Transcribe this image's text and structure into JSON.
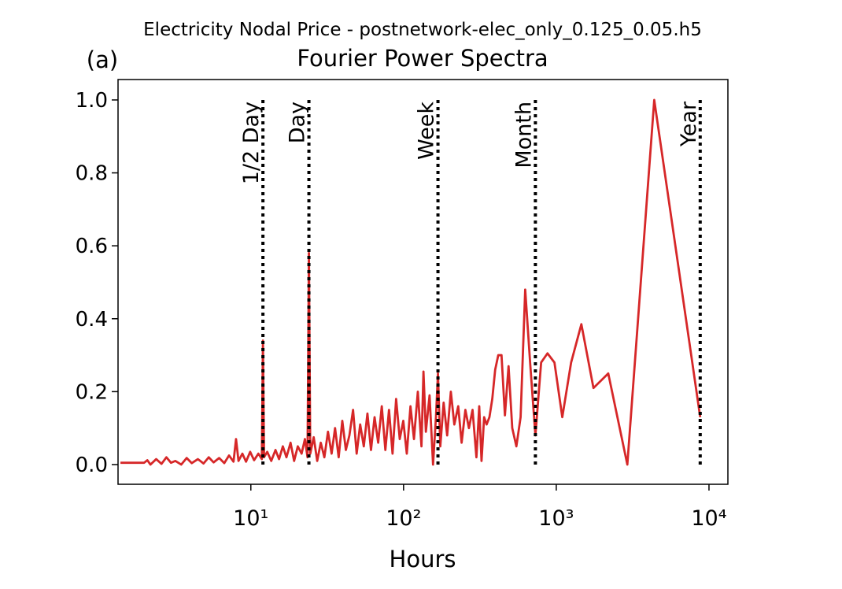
{
  "chart_data": {
    "type": "line",
    "suptitle": "Electricity Nodal Price - postnetwork-elec_only_0.125_0.05.h5",
    "panel_label": "(a)",
    "title": "Fourier Power Spectra",
    "xlabel": "Hours",
    "xscale": "log",
    "xlim": [
      1.35,
      13300
    ],
    "ylim": [
      -0.054,
      1.056
    ],
    "xticks": [
      {
        "value": 10,
        "label": "10¹"
      },
      {
        "value": 100,
        "label": "10²"
      },
      {
        "value": 1000,
        "label": "10³"
      },
      {
        "value": 10000,
        "label": "10⁴"
      }
    ],
    "yticks": [
      {
        "value": 0,
        "label": "0.0"
      },
      {
        "value": 0.2,
        "label": "0.2"
      },
      {
        "value": 0.4,
        "label": "0.4"
      },
      {
        "value": 0.6,
        "label": "0.6"
      },
      {
        "value": 0.8,
        "label": "0.8"
      },
      {
        "value": 1,
        "label": "1.0"
      }
    ],
    "vline_span": [
      0,
      1
    ],
    "reference_lines": [
      {
        "x": 12,
        "label": "1/2 Day"
      },
      {
        "x": 24,
        "label": "Day"
      },
      {
        "x": 168,
        "label": "Week"
      },
      {
        "x": 730,
        "label": "Month"
      },
      {
        "x": 8760,
        "label": "Year"
      }
    ],
    "series": [
      {
        "color": "#d62728",
        "x": [
          1.4,
          2.0,
          2.1,
          2.2,
          2.4,
          2.6,
          2.8,
          3.0,
          3.2,
          3.5,
          3.8,
          4.1,
          4.5,
          4.9,
          5.3,
          5.7,
          6.2,
          6.7,
          7.2,
          7.7,
          8.0,
          8.3,
          8.8,
          9.3,
          9.9,
          10.5,
          11.2,
          11.8,
          12.0,
          12.2,
          12.8,
          13.6,
          14.5,
          15.3,
          16.2,
          17.1,
          18.2,
          19.2,
          20.3,
          21.5,
          22.6,
          23.5,
          24.0,
          24.5,
          25.8,
          27.2,
          28.7,
          30.3,
          32.0,
          33.8,
          35.6,
          37.6,
          39.7,
          41.9,
          44.2,
          46.7,
          49.3,
          52.0,
          54.9,
          58.0,
          61.2,
          64.6,
          68.2,
          72.0,
          76.0,
          80.3,
          84.7,
          89.4,
          94.4,
          99.6,
          105,
          111,
          117,
          124,
          131,
          135,
          140,
          148,
          156,
          163,
          168,
          174,
          183,
          193,
          204,
          215,
          228,
          240,
          254,
          268,
          283,
          300,
          313,
          324,
          337,
          350,
          365,
          381,
          398,
          417,
          438,
          461,
          487,
          515,
          548,
          584,
          626,
          674,
          730,
          796,
          876,
          973,
          1095,
          1251,
          1460,
          1752,
          2190,
          2920,
          4380,
          8760
        ],
        "values": [
          0.005,
          0.005,
          0.012,
          0.0,
          0.015,
          0.002,
          0.02,
          0.005,
          0.01,
          0.0,
          0.018,
          0.004,
          0.015,
          0.003,
          0.02,
          0.006,
          0.018,
          0.004,
          0.025,
          0.008,
          0.07,
          0.01,
          0.03,
          0.008,
          0.035,
          0.012,
          0.03,
          0.015,
          0.34,
          0.02,
          0.035,
          0.01,
          0.04,
          0.015,
          0.05,
          0.02,
          0.06,
          0.01,
          0.05,
          0.03,
          0.07,
          0.02,
          0.58,
          0.03,
          0.075,
          0.01,
          0.06,
          0.02,
          0.09,
          0.03,
          0.1,
          0.02,
          0.12,
          0.04,
          0.08,
          0.15,
          0.03,
          0.11,
          0.05,
          0.14,
          0.04,
          0.13,
          0.06,
          0.16,
          0.04,
          0.15,
          0.03,
          0.18,
          0.07,
          0.12,
          0.03,
          0.16,
          0.07,
          0.2,
          0.05,
          0.255,
          0.09,
          0.19,
          0.0,
          0.13,
          0.25,
          0.05,
          0.17,
          0.08,
          0.2,
          0.11,
          0.16,
          0.06,
          0.15,
          0.1,
          0.15,
          0.02,
          0.16,
          0.01,
          0.13,
          0.11,
          0.13,
          0.18,
          0.26,
          0.3,
          0.3,
          0.135,
          0.27,
          0.1,
          0.05,
          0.13,
          0.48,
          0.28,
          0.08,
          0.28,
          0.305,
          0.28,
          0.13,
          0.28,
          0.385,
          0.21,
          0.25,
          0.0,
          1.0,
          0.13
        ]
      }
    ]
  }
}
